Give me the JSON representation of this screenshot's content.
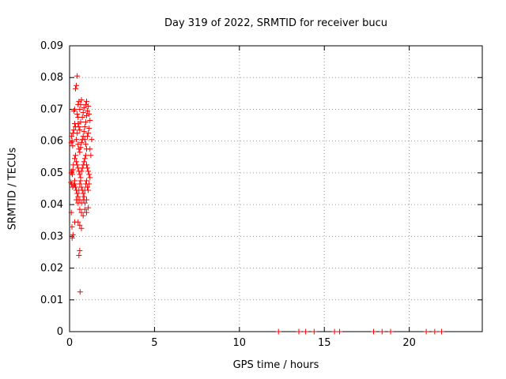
{
  "chart_data": {
    "type": "scatter",
    "title": "Day 319 of 2022, SRMTID for receiver bucu",
    "xlabel": "GPS time / hours",
    "ylabel": "SRMTID / TECUs",
    "xlim": [
      0,
      24.3
    ],
    "ylim": [
      0,
      0.09
    ],
    "xticks": [
      0,
      5,
      10,
      15,
      20
    ],
    "xtick_labels": [
      "0",
      "5",
      "10",
      "15",
      "20"
    ],
    "yticks": [
      0,
      0.01,
      0.02,
      0.03,
      0.04,
      0.05,
      0.06,
      0.07,
      0.08,
      0.09
    ],
    "ytick_labels": [
      "0",
      "0.01",
      "0.02",
      "0.03",
      "0.04",
      "0.05",
      "0.06",
      "0.07",
      "0.08",
      "0.09"
    ],
    "grid": "dotted",
    "marker": "plus",
    "marker_color": "#ff0000",
    "grid_color": "#9a9a9a",
    "axis_color": "#000000",
    "points": [
      [
        0.08,
        0.047
      ],
      [
        0.1,
        0.0595
      ],
      [
        0.1,
        0.05
      ],
      [
        0.1,
        0.0375
      ],
      [
        0.12,
        0.0615
      ],
      [
        0.12,
        0.0465
      ],
      [
        0.13,
        0.0505
      ],
      [
        0.14,
        0.033
      ],
      [
        0.15,
        0.06
      ],
      [
        0.15,
        0.0295
      ],
      [
        0.16,
        0.0495
      ],
      [
        0.18,
        0.0585
      ],
      [
        0.18,
        0.0455
      ],
      [
        0.2,
        0.051
      ],
      [
        0.2,
        0.0305
      ],
      [
        0.2,
        0.0625
      ],
      [
        0.22,
        0.0525
      ],
      [
        0.25,
        0.046
      ],
      [
        0.25,
        0.0695
      ],
      [
        0.25,
        0.0635
      ],
      [
        0.3,
        0.0475
      ],
      [
        0.3,
        0.07
      ],
      [
        0.3,
        0.0345
      ],
      [
        0.3,
        0.0545
      ],
      [
        0.3,
        0.0465
      ],
      [
        0.3,
        0.0655
      ],
      [
        0.35,
        0.0765
      ],
      [
        0.35,
        0.0555
      ],
      [
        0.35,
        0.0455
      ],
      [
        0.35,
        0.0645
      ],
      [
        0.4,
        0.0775
      ],
      [
        0.4,
        0.0605
      ],
      [
        0.4,
        0.0535
      ],
      [
        0.4,
        0.0445
      ],
      [
        0.4,
        0.0415
      ],
      [
        0.45,
        0.0805
      ],
      [
        0.45,
        0.0625
      ],
      [
        0.45,
        0.0525
      ],
      [
        0.45,
        0.0435
      ],
      [
        0.45,
        0.0685
      ],
      [
        0.5,
        0.0715
      ],
      [
        0.5,
        0.0655
      ],
      [
        0.5,
        0.059
      ],
      [
        0.5,
        0.0515
      ],
      [
        0.5,
        0.0425
      ],
      [
        0.5,
        0.0405
      ],
      [
        0.5,
        0.0345
      ],
      [
        0.5,
        0.0675
      ],
      [
        0.55,
        0.0725
      ],
      [
        0.55,
        0.0645
      ],
      [
        0.55,
        0.0575
      ],
      [
        0.55,
        0.0505
      ],
      [
        0.55,
        0.0445
      ],
      [
        0.55,
        0.024
      ],
      [
        0.6,
        0.07
      ],
      [
        0.6,
        0.0635
      ],
      [
        0.6,
        0.0565
      ],
      [
        0.6,
        0.0495
      ],
      [
        0.6,
        0.0465
      ],
      [
        0.6,
        0.0415
      ],
      [
        0.6,
        0.0385
      ],
      [
        0.6,
        0.0335
      ],
      [
        0.6,
        0.0255
      ],
      [
        0.62,
        0.0125
      ],
      [
        0.65,
        0.0715
      ],
      [
        0.65,
        0.066
      ],
      [
        0.65,
        0.058
      ],
      [
        0.65,
        0.0485
      ],
      [
        0.65,
        0.0475
      ],
      [
        0.7,
        0.073
      ],
      [
        0.7,
        0.0595
      ],
      [
        0.7,
        0.0505
      ],
      [
        0.7,
        0.0455
      ],
      [
        0.7,
        0.0405
      ],
      [
        0.7,
        0.0375
      ],
      [
        0.7,
        0.0325
      ],
      [
        0.75,
        0.0605
      ],
      [
        0.75,
        0.0515
      ],
      [
        0.75,
        0.0445
      ],
      [
        0.75,
        0.0675
      ],
      [
        0.8,
        0.0615
      ],
      [
        0.8,
        0.0525
      ],
      [
        0.8,
        0.0435
      ],
      [
        0.8,
        0.0415
      ],
      [
        0.8,
        0.0365
      ],
      [
        0.8,
        0.069
      ],
      [
        0.85,
        0.063
      ],
      [
        0.85,
        0.0535
      ],
      [
        0.85,
        0.0425
      ],
      [
        0.85,
        0.0705
      ],
      [
        0.9,
        0.0645
      ],
      [
        0.9,
        0.0605
      ],
      [
        0.9,
        0.0545
      ],
      [
        0.9,
        0.0445
      ],
      [
        0.9,
        0.0405
      ],
      [
        0.9,
        0.0385
      ],
      [
        0.95,
        0.066
      ],
      [
        0.95,
        0.059
      ],
      [
        0.95,
        0.0555
      ],
      [
        0.95,
        0.0465
      ],
      [
        0.95,
        0.0715
      ],
      [
        1.0,
        0.068
      ],
      [
        1.0,
        0.0575
      ],
      [
        1.0,
        0.0525
      ],
      [
        1.0,
        0.0475
      ],
      [
        1.0,
        0.0415
      ],
      [
        1.0,
        0.0375
      ],
      [
        1.0,
        0.0725
      ],
      [
        1.05,
        0.0695
      ],
      [
        1.05,
        0.0615
      ],
      [
        1.05,
        0.0515
      ],
      [
        1.05,
        0.0455
      ],
      [
        1.1,
        0.071
      ],
      [
        1.1,
        0.0625
      ],
      [
        1.1,
        0.0505
      ],
      [
        1.1,
        0.0445
      ],
      [
        1.1,
        0.039
      ],
      [
        1.15,
        0.064
      ],
      [
        1.15,
        0.0495
      ],
      [
        1.15,
        0.0465
      ],
      [
        1.15,
        0.0685
      ],
      [
        1.2,
        0.0485
      ],
      [
        1.2,
        0.0575
      ],
      [
        1.2,
        0.0665
      ],
      [
        1.25,
        0.0555
      ],
      [
        1.3,
        0.0605
      ],
      [
        12.3,
        0
      ],
      [
        13.5,
        0
      ],
      [
        13.9,
        0
      ],
      [
        14.4,
        0
      ],
      [
        15.6,
        0
      ],
      [
        15.9,
        0
      ],
      [
        17.9,
        0
      ],
      [
        18.4,
        0
      ],
      [
        18.9,
        0
      ],
      [
        21.0,
        0
      ],
      [
        21.5,
        0
      ],
      [
        21.9,
        0
      ]
    ]
  }
}
